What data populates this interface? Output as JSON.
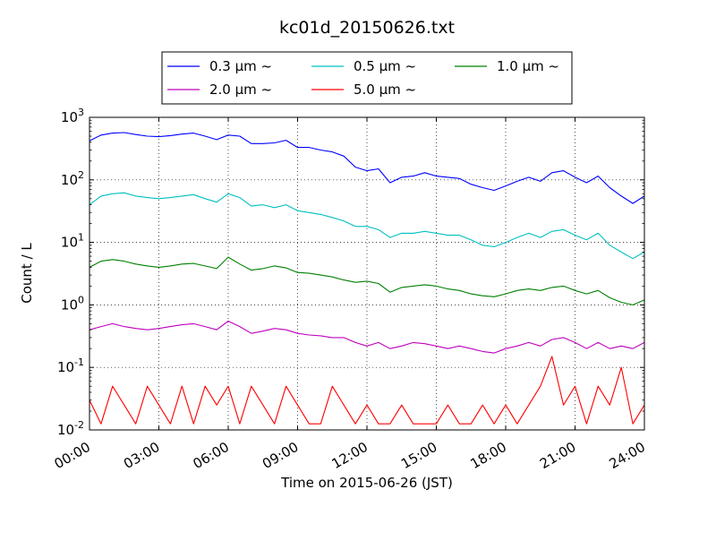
{
  "chart_data": {
    "type": "line",
    "title": "kc01d_20150626.txt",
    "xlabel": "Time on 2015-06-26 (JST)",
    "ylabel": "Count / L",
    "y_scale": "log",
    "ylim": [
      0.01,
      1000
    ],
    "x_unit": "hours",
    "xlim": [
      0,
      24
    ],
    "grid": true,
    "legend_position": "top-center",
    "x_ticks": [
      {
        "value": 0,
        "label": "00:00"
      },
      {
        "value": 3,
        "label": "03:00"
      },
      {
        "value": 6,
        "label": "06:00"
      },
      {
        "value": 9,
        "label": "09:00"
      },
      {
        "value": 12,
        "label": "12:00"
      },
      {
        "value": 15,
        "label": "15:00"
      },
      {
        "value": 18,
        "label": "18:00"
      },
      {
        "value": 21,
        "label": "21:00"
      },
      {
        "value": 24,
        "label": "24:00"
      }
    ],
    "y_ticks": [
      {
        "value": 1000,
        "label": "10",
        "exp": "3"
      },
      {
        "value": 100,
        "label": "10",
        "exp": "2"
      },
      {
        "value": 10,
        "label": "10",
        "exp": "1"
      },
      {
        "value": 1,
        "label": "10",
        "exp": "0"
      },
      {
        "value": 0.1,
        "label": "10",
        "exp": "-1"
      },
      {
        "value": 0.01,
        "label": "10",
        "exp": "-2"
      }
    ],
    "series": [
      {
        "name": "0.3 μm ~",
        "color": "#0000ff",
        "x": [
          0,
          0.5,
          1,
          1.5,
          2,
          2.5,
          3,
          3.5,
          4,
          4.5,
          5,
          5.5,
          6,
          6.5,
          7,
          7.5,
          8,
          8.5,
          9,
          9.5,
          10,
          10.5,
          11,
          11.5,
          12,
          12.5,
          13,
          13.5,
          14,
          14.5,
          15,
          15.5,
          16,
          16.5,
          17,
          17.5,
          18,
          18.5,
          19,
          19.5,
          20,
          20.5,
          21,
          21.5,
          22,
          22.5,
          23,
          23.5,
          24
        ],
        "y": [
          420,
          520,
          560,
          570,
          530,
          500,
          490,
          510,
          540,
          560,
          500,
          440,
          520,
          500,
          380,
          380,
          390,
          430,
          330,
          330,
          300,
          280,
          240,
          160,
          140,
          150,
          90,
          110,
          115,
          130,
          115,
          110,
          105,
          85,
          75,
          68,
          80,
          95,
          110,
          95,
          130,
          140,
          110,
          90,
          115,
          75,
          55,
          42,
          55
        ]
      },
      {
        "name": "0.5 μm ~",
        "color": "#00bfbf",
        "x": [
          0,
          0.5,
          1,
          1.5,
          2,
          2.5,
          3,
          3.5,
          4,
          4.5,
          5,
          5.5,
          6,
          6.5,
          7,
          7.5,
          8,
          8.5,
          9,
          9.5,
          10,
          10.5,
          11,
          11.5,
          12,
          12.5,
          13,
          13.5,
          14,
          14.5,
          15,
          15.5,
          16,
          16.5,
          17,
          17.5,
          18,
          18.5,
          19,
          19.5,
          20,
          20.5,
          21,
          21.5,
          22,
          22.5,
          23,
          23.5,
          24
        ],
        "y": [
          40,
          55,
          60,
          62,
          55,
          52,
          50,
          52,
          55,
          58,
          50,
          44,
          60,
          52,
          38,
          40,
          36,
          40,
          32,
          30,
          28,
          25,
          22,
          18,
          18,
          16,
          12,
          14,
          14,
          15,
          14,
          13,
          13,
          11,
          9,
          8.5,
          10,
          12,
          14,
          12,
          15,
          16,
          13,
          11,
          14,
          9,
          7,
          5.5,
          7
        ]
      },
      {
        "name": "1.0 μm ~",
        "color": "#008000",
        "x": [
          0,
          0.5,
          1,
          1.5,
          2,
          2.5,
          3,
          3.5,
          4,
          4.5,
          5,
          5.5,
          6,
          6.5,
          7,
          7.5,
          8,
          8.5,
          9,
          9.5,
          10,
          10.5,
          11,
          11.5,
          12,
          12.5,
          13,
          13.5,
          14,
          14.5,
          15,
          15.5,
          16,
          16.5,
          17,
          17.5,
          18,
          18.5,
          19,
          19.5,
          20,
          20.5,
          21,
          21.5,
          22,
          22.5,
          23,
          23.5,
          24
        ],
        "y": [
          4,
          5,
          5.3,
          5,
          4.5,
          4.2,
          4,
          4.2,
          4.5,
          4.6,
          4.2,
          3.8,
          5.8,
          4.5,
          3.6,
          3.8,
          4.2,
          3.9,
          3.3,
          3.2,
          3,
          2.8,
          2.5,
          2.3,
          2.4,
          2.2,
          1.6,
          1.9,
          2,
          2.1,
          2,
          1.8,
          1.7,
          1.5,
          1.4,
          1.35,
          1.5,
          1.7,
          1.8,
          1.7,
          1.9,
          2,
          1.7,
          1.5,
          1.7,
          1.3,
          1.1,
          1,
          1.2
        ]
      },
      {
        "name": "2.0 μm ~",
        "color": "#bf00bf",
        "x": [
          0,
          0.5,
          1,
          1.5,
          2,
          2.5,
          3,
          3.5,
          4,
          4.5,
          5,
          5.5,
          6,
          6.5,
          7,
          7.5,
          8,
          8.5,
          9,
          9.5,
          10,
          10.5,
          11,
          11.5,
          12,
          12.5,
          13,
          13.5,
          14,
          14.5,
          15,
          15.5,
          16,
          16.5,
          17,
          17.5,
          18,
          18.5,
          19,
          19.5,
          20,
          20.5,
          21,
          21.5,
          22,
          22.5,
          23,
          23.5,
          24
        ],
        "y": [
          0.4,
          0.45,
          0.5,
          0.45,
          0.42,
          0.4,
          0.42,
          0.45,
          0.48,
          0.5,
          0.45,
          0.4,
          0.55,
          0.45,
          0.35,
          0.38,
          0.42,
          0.4,
          0.35,
          0.33,
          0.32,
          0.3,
          0.3,
          0.25,
          0.22,
          0.25,
          0.2,
          0.22,
          0.25,
          0.24,
          0.22,
          0.2,
          0.22,
          0.2,
          0.18,
          0.17,
          0.2,
          0.22,
          0.25,
          0.22,
          0.28,
          0.3,
          0.25,
          0.2,
          0.25,
          0.2,
          0.22,
          0.2,
          0.25
        ]
      },
      {
        "name": "5.0 μm ~",
        "color": "#ff0000",
        "x": [
          0,
          0.5,
          1,
          1.5,
          2,
          2.5,
          3,
          3.5,
          4,
          4.5,
          5,
          5.5,
          6,
          6.5,
          7,
          7.5,
          8,
          8.5,
          9,
          9.5,
          10,
          10.5,
          11,
          11.5,
          12,
          12.5,
          13,
          13.5,
          14,
          14.5,
          15,
          15.5,
          16,
          16.5,
          17,
          17.5,
          18,
          18.5,
          19,
          19.5,
          20,
          20.5,
          21,
          21.5,
          22,
          22.5,
          23,
          23.5,
          24
        ],
        "y": [
          0.03,
          0.0125,
          0.05,
          0.025,
          0.0125,
          0.05,
          0.025,
          0.0125,
          0.05,
          0.0125,
          0.05,
          0.025,
          0.05,
          0.0125,
          0.05,
          0.025,
          0.0125,
          0.05,
          0.025,
          0.0125,
          0.0125,
          0.05,
          0.025,
          0.0125,
          0.025,
          0.0125,
          0.0125,
          0.025,
          0.0125,
          0.0125,
          0.0125,
          0.025,
          0.0125,
          0.0125,
          0.025,
          0.0125,
          0.025,
          0.0125,
          0.025,
          0.05,
          0.15,
          0.025,
          0.05,
          0.0125,
          0.05,
          0.025,
          0.1,
          0.0125,
          0.025
        ]
      }
    ]
  }
}
